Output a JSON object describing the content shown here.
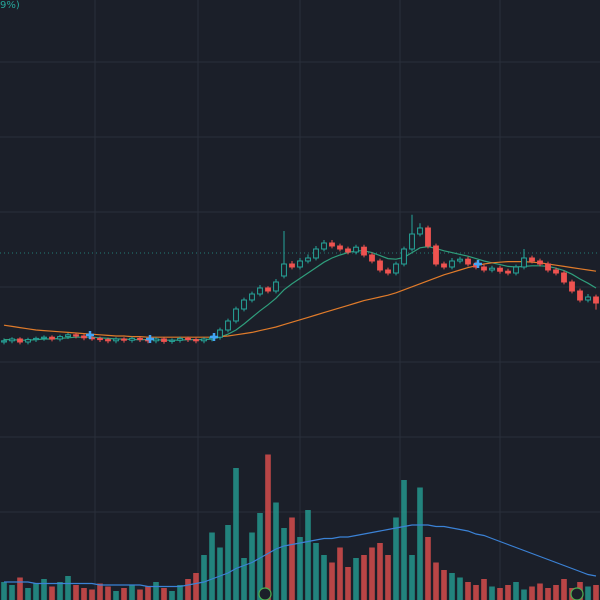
{
  "chart_data": {
    "type": "candlestick",
    "title": "9%)",
    "open": [
      43.0,
      43.2,
      43.5,
      43.0,
      43.4,
      43.6,
      43.8,
      43.5,
      43.9,
      44.2,
      44.0,
      43.7,
      43.6,
      43.4,
      43.2,
      43.5,
      43.3,
      43.6,
      43.4,
      43.2,
      43.5,
      43.1,
      43.3,
      43.6,
      43.4,
      43.2,
      43.5,
      43.8,
      45.0,
      46.5,
      48.5,
      50.0,
      51.0,
      52.0,
      51.5,
      54.0,
      56.0,
      55.5,
      56.5,
      57.0,
      58.5,
      59.5,
      59.0,
      58.5,
      58.0,
      58.8,
      57.5,
      56.5,
      55.0,
      54.5,
      56.0,
      58.5,
      61.0,
      62.0,
      59.0,
      56.0,
      55.5,
      56.5,
      56.8,
      56.0,
      55.5,
      55.0,
      55.3,
      54.8,
      54.5,
      55.5,
      57.0,
      56.5,
      56.0,
      55.0,
      54.5,
      53.0,
      51.5,
      50.0,
      50.5
    ],
    "high": [
      43.6,
      43.8,
      43.8,
      43.7,
      43.9,
      44.1,
      44.1,
      44.2,
      44.5,
      44.5,
      44.3,
      44.0,
      43.9,
      43.7,
      43.8,
      43.8,
      43.9,
      43.9,
      43.7,
      43.8,
      43.8,
      43.6,
      43.9,
      43.9,
      43.7,
      43.8,
      44.1,
      45.4,
      46.9,
      48.9,
      50.4,
      51.4,
      52.5,
      52.3,
      53.5,
      61.5,
      56.5,
      57.0,
      57.6,
      59.0,
      60.0,
      60.0,
      59.4,
      58.9,
      59.2,
      59.2,
      57.9,
      56.9,
      55.4,
      56.4,
      58.9,
      64.2,
      62.8,
      62.4,
      59.4,
      56.4,
      57.0,
      57.2,
      57.2,
      56.4,
      55.9,
      55.7,
      55.7,
      55.2,
      55.9,
      58.5,
      57.4,
      56.9,
      56.4,
      55.4,
      54.9,
      53.4,
      51.9,
      51.0,
      50.9
    ],
    "low": [
      42.6,
      42.8,
      42.6,
      42.6,
      43.0,
      43.2,
      43.1,
      43.1,
      43.5,
      43.6,
      43.3,
      43.2,
      43.0,
      42.8,
      42.8,
      42.9,
      42.9,
      43.0,
      42.8,
      42.8,
      42.7,
      42.7,
      42.9,
      43.0,
      42.8,
      42.8,
      43.1,
      43.4,
      44.6,
      46.1,
      48.1,
      49.6,
      50.6,
      51.1,
      51.1,
      53.6,
      55.1,
      55.1,
      56.1,
      56.6,
      58.1,
      58.6,
      58.1,
      57.6,
      57.6,
      57.1,
      56.1,
      54.6,
      54.1,
      54.1,
      55.6,
      58.1,
      60.6,
      58.6,
      55.6,
      55.1,
      55.1,
      56.1,
      55.6,
      55.1,
      54.6,
      54.6,
      54.4,
      54.1,
      54.1,
      55.1,
      56.1,
      55.6,
      54.6,
      54.1,
      52.6,
      51.1,
      49.6,
      49.6,
      48.4
    ],
    "close": [
      43.2,
      43.5,
      43.0,
      43.4,
      43.6,
      43.8,
      43.5,
      43.9,
      44.2,
      44.0,
      43.7,
      43.6,
      43.4,
      43.2,
      43.5,
      43.3,
      43.6,
      43.4,
      43.2,
      43.5,
      43.1,
      43.3,
      43.6,
      43.4,
      43.2,
      43.5,
      43.8,
      45.0,
      46.5,
      48.5,
      50.0,
      51.0,
      52.0,
      51.5,
      53.0,
      56.0,
      55.5,
      56.5,
      57.0,
      58.5,
      59.5,
      59.0,
      58.5,
      58.0,
      58.8,
      57.5,
      56.5,
      55.0,
      54.5,
      56.0,
      58.5,
      61.0,
      62.0,
      59.0,
      56.0,
      55.5,
      56.5,
      56.8,
      56.0,
      55.5,
      55.0,
      55.3,
      54.8,
      54.5,
      55.5,
      57.0,
      56.5,
      56.0,
      55.0,
      54.5,
      53.0,
      51.5,
      50.0,
      50.5,
      49.5
    ],
    "up_color": "#26a69a",
    "down_color": "#ef5350",
    "ylim": [
      0,
      100
    ],
    "moving_averages": [
      {
        "color": "#2f9e7c",
        "values": [
          43.4,
          43.4,
          43.3,
          43.3,
          43.4,
          43.5,
          43.5,
          43.6,
          43.7,
          43.8,
          43.8,
          43.8,
          43.7,
          43.6,
          43.5,
          43.5,
          43.4,
          43.4,
          43.4,
          43.4,
          43.3,
          43.3,
          43.3,
          43.4,
          43.4,
          43.4,
          43.5,
          43.8,
          44.3,
          45.0,
          46.0,
          47.1,
          48.2,
          49.2,
          50.3,
          51.7,
          52.7,
          53.6,
          54.5,
          55.4,
          56.3,
          57.0,
          57.5,
          57.9,
          58.2,
          58.2,
          57.9,
          57.4,
          56.9,
          56.8,
          57.1,
          57.9,
          58.7,
          58.9,
          58.6,
          58.2,
          57.9,
          57.6,
          57.3,
          56.9,
          56.5,
          56.2,
          55.9,
          55.6,
          55.5,
          55.6,
          55.7,
          55.7,
          55.6,
          55.3,
          54.9,
          54.3,
          53.5,
          52.8,
          52.0
        ]
      },
      {
        "color": "#e07b2a",
        "values": [
          45.8,
          45.6,
          45.4,
          45.2,
          45.0,
          44.9,
          44.8,
          44.7,
          44.6,
          44.5,
          44.4,
          44.3,
          44.2,
          44.1,
          44.0,
          44.0,
          43.9,
          43.9,
          43.8,
          43.8,
          43.8,
          43.8,
          43.8,
          43.8,
          43.8,
          43.8,
          43.8,
          43.9,
          44.0,
          44.2,
          44.4,
          44.6,
          44.9,
          45.2,
          45.5,
          45.9,
          46.3,
          46.7,
          47.1,
          47.5,
          47.9,
          48.3,
          48.7,
          49.1,
          49.5,
          49.9,
          50.2,
          50.5,
          50.8,
          51.2,
          51.7,
          52.2,
          52.7,
          53.2,
          53.7,
          54.2,
          54.6,
          55.0,
          55.4,
          55.7,
          56.0,
          56.2,
          56.3,
          56.4,
          56.4,
          56.4,
          56.3,
          56.2,
          56.0,
          55.8,
          55.6,
          55.4,
          55.2,
          55.0,
          54.8
        ]
      }
    ],
    "volume": {
      "ylim": [
        0,
        400
      ],
      "values": [
        12,
        10,
        15,
        8,
        11,
        14,
        9,
        12,
        16,
        10,
        8,
        7,
        11,
        9,
        6,
        8,
        10,
        7,
        9,
        12,
        8,
        6,
        10,
        14,
        18,
        30,
        45,
        35,
        50,
        88,
        28,
        45,
        58,
        97,
        65,
        48,
        55,
        42,
        60,
        38,
        30,
        25,
        35,
        22,
        28,
        30,
        35,
        38,
        30,
        55,
        80,
        30,
        75,
        42,
        25,
        20,
        18,
        15,
        12,
        10,
        14,
        9,
        8,
        10,
        12,
        7,
        9,
        11,
        8,
        10,
        14,
        8,
        12,
        9,
        10
      ],
      "average": {
        "color": "#3b82d6",
        "values": [
          12,
          12,
          12,
          12,
          11,
          11,
          11,
          11,
          11,
          11,
          11,
          11,
          10,
          10,
          10,
          10,
          10,
          10,
          9,
          9,
          9,
          9,
          9,
          10,
          11,
          12,
          14,
          16,
          18,
          21,
          23,
          25,
          28,
          31,
          34,
          36,
          37,
          38,
          39,
          40,
          41,
          41,
          42,
          42,
          43,
          44,
          45,
          46,
          47,
          48,
          49,
          50,
          50,
          50,
          49,
          49,
          48,
          47,
          46,
          44,
          43,
          41,
          39,
          37,
          35,
          33,
          31,
          29,
          27,
          25,
          23,
          21,
          19,
          17,
          16
        ]
      }
    },
    "annotations": [
      "E",
      "E"
    ]
  }
}
